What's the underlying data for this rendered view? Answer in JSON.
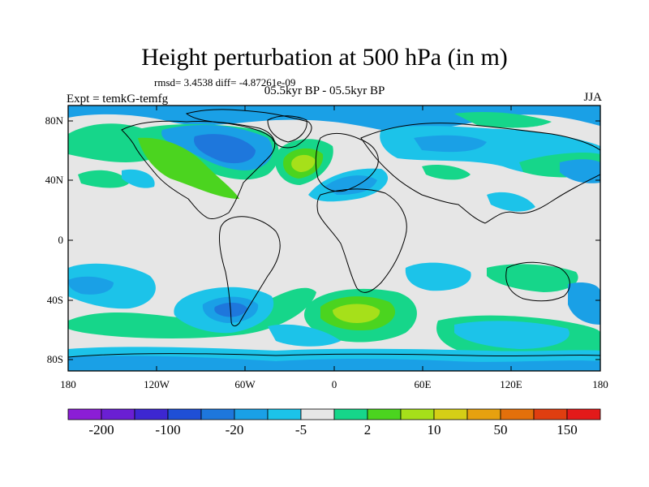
{
  "title": "Height perturbation at 500 hPa (in m)",
  "stats": "rmsd= 3.4538  diff= -4.87261e-09",
  "subtitle": "05.5kyr BP - 05.5kyr BP",
  "expt": "Expt = temkG-temfg",
  "season": "JJA",
  "map": {
    "lat_ticks": [
      "80N",
      "40N",
      "0",
      "40S",
      "80S"
    ],
    "lon_ticks": [
      "180",
      "120W",
      "60W",
      "0",
      "60E",
      "120E",
      "180"
    ]
  },
  "colorbar": {
    "colors": [
      "#8b1ed6",
      "#6a1fd3",
      "#3d27d1",
      "#1f4fd6",
      "#1e77dc",
      "#1aa0e6",
      "#1cc3e9",
      "#e6e6e6",
      "#16d68a",
      "#4bd41f",
      "#a6e01a",
      "#d5cf16",
      "#e6a10f",
      "#e3700b",
      "#e03e10",
      "#e31a1a"
    ],
    "labels": [
      "-200",
      "-100",
      "-20",
      "-5",
      "2",
      "10",
      "50",
      "150"
    ]
  }
}
